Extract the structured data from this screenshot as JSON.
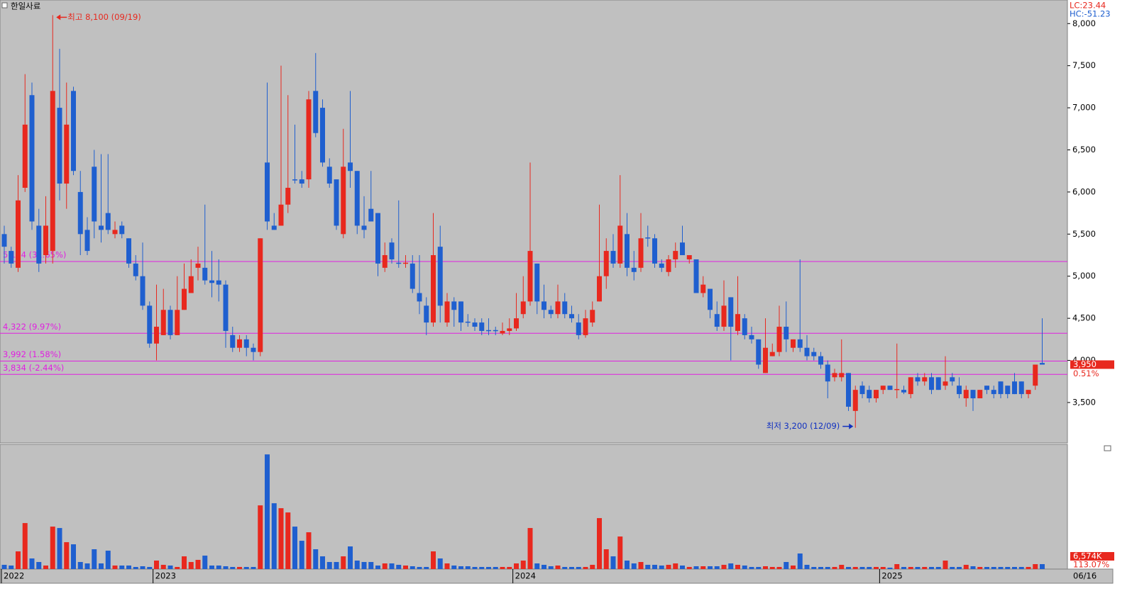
{
  "chart_data": {
    "type": "candlestick",
    "title": "한일사료",
    "indicators": [
      "LC:23.44",
      "HC:-51.23"
    ],
    "ylim": [
      3020,
      8280
    ],
    "yticks": [
      {
        "value": 3500,
        "label": "3,500"
      },
      {
        "value": 4000,
        "label": "4,000"
      },
      {
        "value": 4500,
        "label": "4,500"
      },
      {
        "value": 5000,
        "label": "5,000"
      },
      {
        "value": 5500,
        "label": "5,500"
      },
      {
        "value": 6000,
        "label": "6,000"
      },
      {
        "value": 6500,
        "label": "6,500"
      },
      {
        "value": 7000,
        "label": "7,000"
      },
      {
        "value": 7500,
        "label": "7,500"
      },
      {
        "value": 8000,
        "label": "8,000"
      }
    ],
    "price_lines": [
      {
        "value": 5174,
        "label": "5,174 (31.65%)"
      },
      {
        "value": 4322,
        "label": "4,322 (9.97%)"
      },
      {
        "value": 3992,
        "label": "3,992 (1.58%)"
      },
      {
        "value": 3834,
        "label": "3,834 (-2.44%)"
      }
    ],
    "up_color": "#e8281e",
    "down_color": "#1f5fcf",
    "line_color": "#e020e0",
    "annotations": [
      {
        "text": "최고 8,100 (09/19)",
        "value": 8100
      },
      {
        "text": "최저 3,200 (12/09)",
        "value": 3200
      }
    ],
    "last_price": {
      "value": 3950,
      "label": "3,950",
      "change": "0.51%"
    },
    "volume_ylim": [
      0,
      160000
    ],
    "last_volume": {
      "value": 6574,
      "label": "6,574K",
      "change": "113.07%"
    },
    "categories": [
      "2022",
      null,
      null,
      null,
      null,
      null,
      null,
      null,
      null,
      null,
      null,
      null,
      null,
      null,
      null,
      null,
      null,
      null,
      null,
      null,
      null,
      null,
      "2023",
      null,
      null,
      null,
      null,
      null,
      null,
      null,
      null,
      null,
      null,
      null,
      null,
      null,
      null,
      null,
      null,
      null,
      null,
      null,
      null,
      null,
      null,
      null,
      null,
      null,
      null,
      null,
      null,
      null,
      null,
      null,
      null,
      null,
      null,
      null,
      null,
      null,
      null,
      null,
      null,
      null,
      null,
      null,
      null,
      null,
      null,
      null,
      null,
      null,
      null,
      null,
      "2024",
      null,
      null,
      null,
      null,
      null,
      null,
      null,
      null,
      null,
      null,
      null,
      null,
      null,
      null,
      null,
      null,
      null,
      null,
      null,
      null,
      null,
      null,
      null,
      null,
      null,
      null,
      null,
      null,
      null,
      null,
      null,
      null,
      null,
      null,
      null,
      null,
      null,
      null,
      null,
      null,
      null,
      null,
      null,
      null,
      null,
      null,
      null,
      null,
      null,
      null,
      null,
      null,
      "2025",
      null,
      null,
      null,
      null,
      null,
      null,
      null,
      null,
      null,
      null,
      null,
      null,
      null,
      null,
      null,
      null,
      null,
      null,
      null,
      null,
      null,
      null,
      "06/16"
    ],
    "candles": [
      [
        5500,
        5600,
        5150,
        5350
      ],
      [
        5300,
        5350,
        5100,
        5150
      ],
      [
        5100,
        6200,
        5050,
        5900
      ],
      [
        6050,
        7400,
        6000,
        6800
      ],
      [
        7150,
        7300,
        5550,
        5650
      ],
      [
        5600,
        5800,
        5050,
        5150
      ],
      [
        5250,
        5950,
        5150,
        5600
      ],
      [
        5300,
        8100,
        5150,
        7200
      ],
      [
        7000,
        7700,
        5900,
        6100
      ],
      [
        6100,
        7300,
        5800,
        6800
      ],
      [
        7200,
        7250,
        6200,
        6250
      ],
      [
        6000,
        6250,
        5250,
        5500
      ],
      [
        5550,
        5700,
        5250,
        5300
      ],
      [
        6300,
        6500,
        5450,
        5650
      ],
      [
        5600,
        6450,
        5400,
        5550
      ],
      [
        5750,
        6450,
        5500,
        5550
      ],
      [
        5500,
        5650,
        5450,
        5550
      ],
      [
        5600,
        5650,
        5450,
        5500
      ],
      [
        5450,
        5450,
        5100,
        5150
      ],
      [
        5150,
        5250,
        4950,
        5000
      ],
      [
        5000,
        5400,
        4600,
        4650
      ],
      [
        4650,
        4700,
        4150,
        4200
      ],
      [
        4200,
        4900,
        4000,
        4400
      ],
      [
        4300,
        4850,
        4300,
        4600
      ],
      [
        4600,
        4650,
        4250,
        4300
      ],
      [
        4300,
        5000,
        4300,
        4600
      ],
      [
        4600,
        5150,
        4600,
        4850
      ],
      [
        4800,
        5200,
        4800,
        5000
      ],
      [
        5100,
        5350,
        4950,
        5150
      ],
      [
        5100,
        5850,
        4900,
        4950
      ],
      [
        4950,
        5300,
        4750,
        4920
      ],
      [
        4950,
        5200,
        4700,
        4900
      ],
      [
        4900,
        4950,
        4150,
        4350
      ],
      [
        4300,
        4400,
        4100,
        4150
      ],
      [
        4150,
        4300,
        4100,
        4250
      ],
      [
        4250,
        4300,
        4050,
        4150
      ],
      [
        4150,
        4200,
        4000,
        4100
      ],
      [
        4100,
        5450,
        4050,
        5450
      ],
      [
        6350,
        7300,
        5550,
        5650
      ],
      [
        5600,
        5750,
        5550,
        5550
      ],
      [
        5600,
        7500,
        5600,
        5850
      ],
      [
        5850,
        7150,
        5750,
        6050
      ],
      [
        6150,
        6800,
        6100,
        6140
      ],
      [
        6150,
        6250,
        6050,
        6100
      ],
      [
        6150,
        7200,
        6050,
        7100
      ],
      [
        7200,
        7650,
        6650,
        6700
      ],
      [
        7000,
        7100,
        6300,
        6350
      ],
      [
        6300,
        6400,
        6050,
        6100
      ],
      [
        6150,
        6150,
        5550,
        5600
      ],
      [
        5500,
        6750,
        5450,
        6300
      ],
      [
        6350,
        7200,
        6050,
        6250
      ],
      [
        6250,
        6250,
        5500,
        5600
      ],
      [
        5600,
        5950,
        5450,
        5550
      ],
      [
        5800,
        6250,
        5650,
        5650
      ],
      [
        5750,
        5750,
        5000,
        5150
      ],
      [
        5100,
        5400,
        5050,
        5250
      ],
      [
        5400,
        5450,
        5150,
        5200
      ],
      [
        5160,
        5900,
        5100,
        5150
      ],
      [
        5150,
        5250,
        5100,
        5160
      ],
      [
        5150,
        5250,
        4800,
        4850
      ],
      [
        4800,
        5250,
        4550,
        4700
      ],
      [
        4650,
        4750,
        4300,
        4450
      ],
      [
        4450,
        5750,
        4400,
        5250
      ],
      [
        5350,
        5600,
        4450,
        4650
      ],
      [
        4450,
        4800,
        4400,
        4700
      ],
      [
        4700,
        4750,
        4400,
        4600
      ],
      [
        4700,
        4700,
        4350,
        4450
      ],
      [
        4460,
        4550,
        4400,
        4450
      ],
      [
        4450,
        4500,
        4350,
        4400
      ],
      [
        4450,
        4500,
        4300,
        4350
      ],
      [
        4360,
        4500,
        4300,
        4350
      ],
      [
        4360,
        4400,
        4300,
        4350
      ],
      [
        4320,
        4450,
        4300,
        4350
      ],
      [
        4350,
        4500,
        4300,
        4380
      ],
      [
        4380,
        4800,
        4350,
        4500
      ],
      [
        4550,
        5000,
        4500,
        4700
      ],
      [
        4700,
        6350,
        4650,
        5300
      ],
      [
        5150,
        5150,
        4550,
        4700
      ],
      [
        4700,
        4900,
        4500,
        4600
      ],
      [
        4600,
        4650,
        4500,
        4550
      ],
      [
        4550,
        4900,
        4500,
        4700
      ],
      [
        4700,
        4800,
        4500,
        4550
      ],
      [
        4550,
        4650,
        4450,
        4500
      ],
      [
        4450,
        4550,
        4250,
        4300
      ],
      [
        4300,
        4600,
        4270,
        4500
      ],
      [
        4450,
        4700,
        4400,
        4600
      ],
      [
        4700,
        5850,
        4700,
        5000
      ],
      [
        5000,
        5450,
        4850,
        5300
      ],
      [
        5300,
        5500,
        5100,
        5150
      ],
      [
        5150,
        6200,
        5100,
        5600
      ],
      [
        5500,
        5750,
        5000,
        5100
      ],
      [
        5100,
        5300,
        4950,
        5050
      ],
      [
        5100,
        5750,
        5050,
        5450
      ],
      [
        5460,
        5600,
        5350,
        5450
      ],
      [
        5450,
        5500,
        5100,
        5150
      ],
      [
        5150,
        5200,
        5050,
        5100
      ],
      [
        5050,
        5250,
        5000,
        5200
      ],
      [
        5200,
        5400,
        5100,
        5300
      ],
      [
        5400,
        5600,
        5250,
        5250
      ],
      [
        5200,
        5250,
        5150,
        5250
      ],
      [
        5200,
        5200,
        4800,
        4800
      ],
      [
        4800,
        5000,
        4750,
        4900
      ],
      [
        4850,
        4850,
        4500,
        4600
      ],
      [
        4550,
        4700,
        4350,
        4400
      ],
      [
        4400,
        4950,
        4350,
        4650
      ],
      [
        4750,
        4750,
        4000,
        4400
      ],
      [
        4350,
        5000,
        4300,
        4550
      ],
      [
        4500,
        4550,
        4250,
        4300
      ],
      [
        4300,
        4400,
        4200,
        4250
      ],
      [
        4250,
        4250,
        3900,
        3950
      ],
      [
        3850,
        4500,
        3850,
        4150
      ],
      [
        4050,
        4200,
        4050,
        4100
      ],
      [
        4100,
        4650,
        4050,
        4400
      ],
      [
        4400,
        4700,
        4100,
        4250
      ],
      [
        4150,
        4250,
        4100,
        4250
      ],
      [
        4250,
        5200,
        4100,
        4150
      ],
      [
        4150,
        4300,
        4000,
        4050
      ],
      [
        4100,
        4150,
        4000,
        4050
      ],
      [
        4050,
        4100,
        3900,
        3950
      ],
      [
        3950,
        4000,
        3550,
        3750
      ],
      [
        3800,
        3900,
        3750,
        3850
      ],
      [
        3800,
        4250,
        3750,
        3850
      ],
      [
        3850,
        3850,
        3400,
        3450
      ],
      [
        3400,
        3700,
        3200,
        3650
      ],
      [
        3700,
        3750,
        3550,
        3600
      ],
      [
        3650,
        3700,
        3500,
        3550
      ],
      [
        3550,
        3650,
        3500,
        3650
      ],
      [
        3650,
        3700,
        3600,
        3700
      ],
      [
        3700,
        3700,
        3650,
        3650
      ],
      [
        3650,
        4200,
        3550,
        3660
      ],
      [
        3650,
        3700,
        3600,
        3620
      ],
      [
        3600,
        3800,
        3550,
        3800
      ],
      [
        3800,
        3850,
        3700,
        3750
      ],
      [
        3750,
        3850,
        3700,
        3800
      ],
      [
        3800,
        3850,
        3600,
        3650
      ],
      [
        3800,
        3800,
        3650,
        3650
      ],
      [
        3700,
        4050,
        3650,
        3750
      ],
      [
        3800,
        3850,
        3700,
        3750
      ],
      [
        3700,
        3800,
        3550,
        3600
      ],
      [
        3550,
        3700,
        3450,
        3650
      ],
      [
        3650,
        3650,
        3400,
        3550
      ],
      [
        3550,
        3650,
        3550,
        3650
      ],
      [
        3700,
        3700,
        3600,
        3650
      ],
      [
        3650,
        3700,
        3550,
        3600
      ],
      [
        3750,
        3750,
        3550,
        3600
      ],
      [
        3700,
        3700,
        3550,
        3600
      ],
      [
        3750,
        3850,
        3600,
        3600
      ],
      [
        3750,
        3750,
        3550,
        3600
      ],
      [
        3600,
        3650,
        3550,
        3650
      ],
      [
        3700,
        3950,
        3650,
        3950
      ],
      [
        3970,
        4500,
        3950,
        3950
      ]
    ],
    "volumes": [
      5640,
      4700,
      23500,
      61100,
      14100,
      9400,
      4700,
      56400,
      54520,
      35720,
      32900,
      9400,
      7520,
      26320,
      7520,
      24440,
      4700,
      4700,
      4700,
      2820,
      3760,
      2820,
      11280,
      5640,
      4700,
      2820,
      16920,
      9400,
      12220,
      17860,
      4700,
      4700,
      3760,
      2820,
      2820,
      2820,
      2820,
      84600,
      152280,
      87420,
      80840,
      75200,
      56400,
      37600,
      48880,
      26320,
      16920,
      9400,
      9400,
      16920,
      30080,
      11280,
      9400,
      9400,
      4700,
      7520,
      7520,
      5640,
      4700,
      3760,
      2820,
      2820,
      23500,
      14100,
      7520,
      4700,
      3760,
      3760,
      2820,
      2820,
      2820,
      2820,
      2820,
      2820,
      7520,
      11280,
      54520,
      7520,
      5640,
      3760,
      4700,
      2820,
      2820,
      2820,
      2820,
      5640,
      67680,
      26320,
      16920,
      43240,
      11280,
      7520,
      9400,
      5640,
      5640,
      4700,
      5640,
      7520,
      4700,
      2820,
      3760,
      3760,
      3760,
      3760,
      5640,
      7520,
      5640,
      4700,
      2820,
      2820,
      3760,
      2820,
      2820,
      9400,
      4700,
      20680,
      5640,
      2820,
      2820,
      2820,
      2820,
      5640,
      2820,
      2820,
      2820,
      2820,
      2820,
      2820,
      1880,
      6580,
      2820,
      2820,
      2820,
      2820,
      2820,
      2820,
      11280,
      2820,
      2820,
      5640,
      3760,
      2820,
      2820,
      2820,
      2820,
      2820,
      2820,
      2820,
      2820,
      6580,
      6574
    ]
  }
}
